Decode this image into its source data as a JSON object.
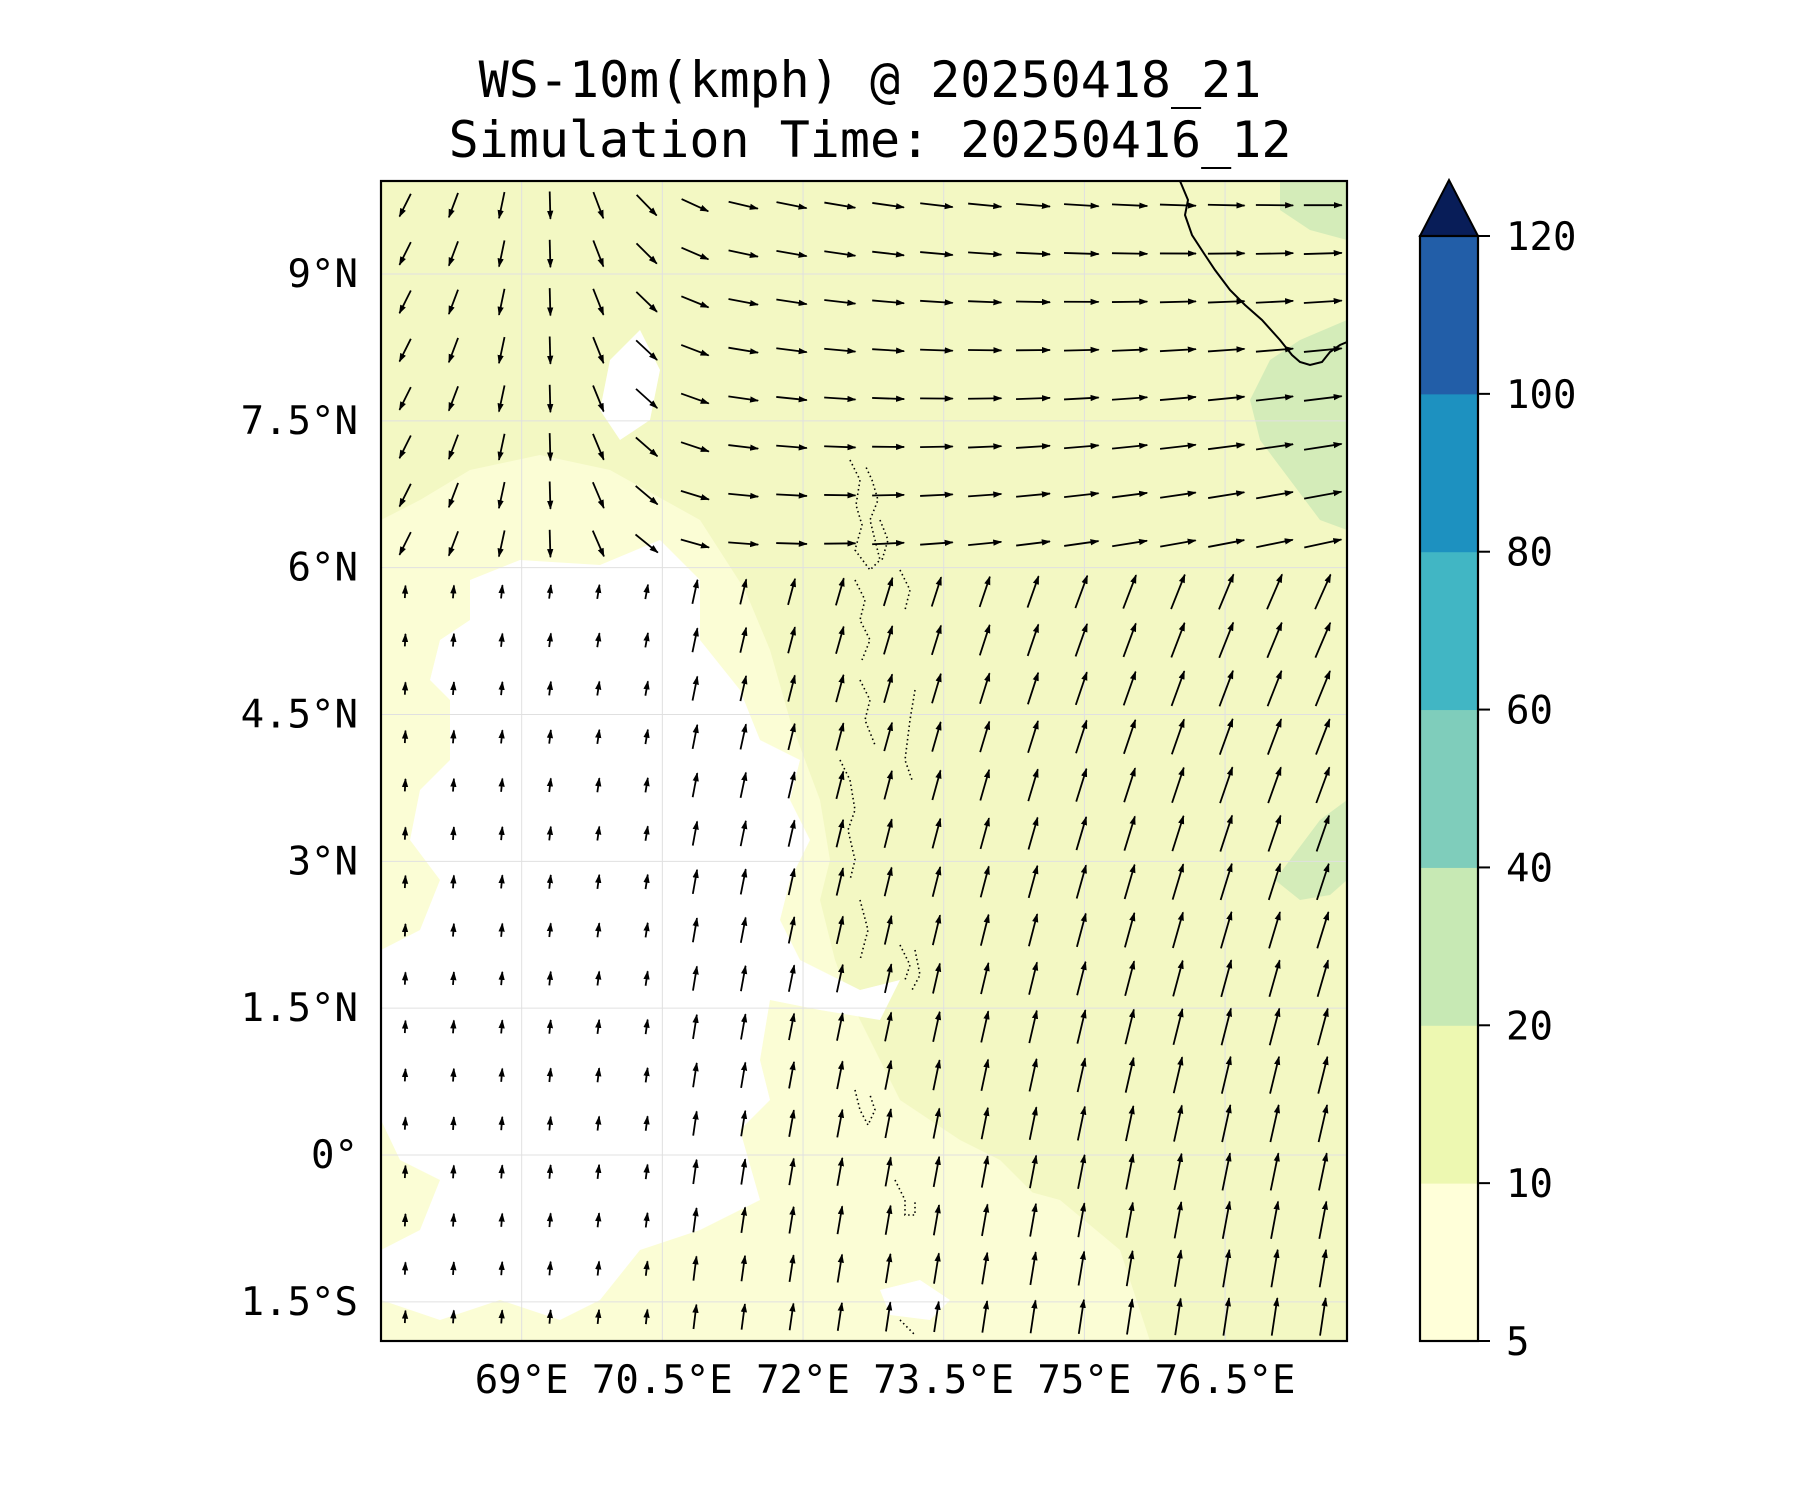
{
  "title": {
    "line1": "WS-10m(kmph) @ 20250418_21",
    "line2": "Simulation Time: 20250416_12"
  },
  "map": {
    "lon_range": [
      67.5,
      77.8
    ],
    "lat_range": [
      -1.9,
      9.95
    ],
    "lon_ticks": [
      {
        "value": 69,
        "label": "69°E"
      },
      {
        "value": 70.5,
        "label": "70.5°E"
      },
      {
        "value": 72,
        "label": "72°E"
      },
      {
        "value": 73.5,
        "label": "73.5°E"
      },
      {
        "value": 75,
        "label": "75°E"
      },
      {
        "value": 76.5,
        "label": "76.5°E"
      }
    ],
    "lat_ticks": [
      {
        "value": 9,
        "label": "9°N"
      },
      {
        "value": 7.5,
        "label": "7.5°N"
      },
      {
        "value": 6,
        "label": "6°N"
      },
      {
        "value": 4.5,
        "label": "4.5°N"
      },
      {
        "value": 3,
        "label": "3°N"
      },
      {
        "value": 1.5,
        "label": "1.5°N"
      },
      {
        "value": 0,
        "label": "0°"
      },
      {
        "value": -1.5,
        "label": "1.5°S"
      }
    ],
    "gridlines": true,
    "field": "wind speed 10 m (kmph) with wind vectors"
  },
  "colorbar": {
    "levels": [
      5,
      10,
      20,
      40,
      60,
      80,
      100,
      120
    ],
    "labels": [
      "5",
      "10",
      "20",
      "40",
      "60",
      "80",
      "100",
      "120"
    ],
    "colors": [
      "#ffffd9",
      "#edf8b1",
      "#c7e9b4",
      "#7fcdbb",
      "#41b6c4",
      "#1d91c0",
      "#225ea8",
      "#0c2c84"
    ],
    "extend_color": "#081d58",
    "extend": "max"
  },
  "colors": {
    "below_min": "#ffffff",
    "coast": "#000000"
  }
}
